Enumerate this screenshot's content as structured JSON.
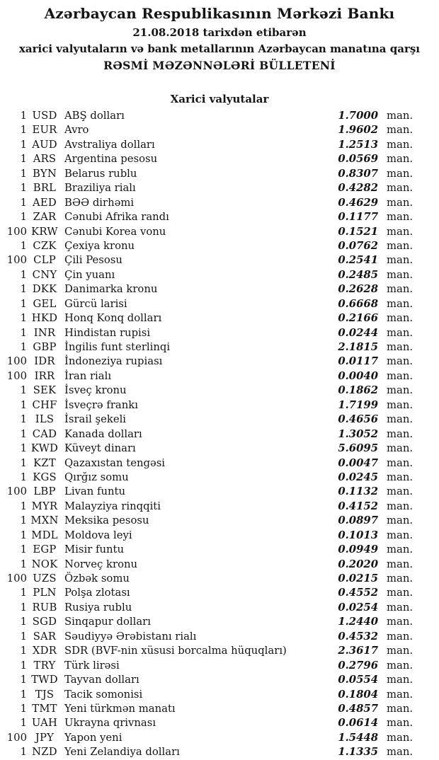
{
  "header": {
    "bank_name": "Azərbaycan Respublikasının Mərkəzi Bankı",
    "date_line": "21.08.2018 tarixdən etibarən",
    "subtitle_line": "xarici valyutaların və bank metallarının Azərbaycan manatına qarşı",
    "bulletin_title": "RƏSMİ MƏZƏNNƏLƏRİ BÜLLETENİ"
  },
  "section": {
    "title": "Xarici valyutalar"
  },
  "unit_label": "man.",
  "rates": [
    {
      "qty": "1",
      "code": "USD",
      "name": "ABŞ dolları",
      "rate": "1.7000"
    },
    {
      "qty": "1",
      "code": "EUR",
      "name": "Avro",
      "rate": "1.9602"
    },
    {
      "qty": "1",
      "code": "AUD",
      "name": "Avstraliya dolları",
      "rate": "1.2513"
    },
    {
      "qty": "1",
      "code": "ARS",
      "name": "Argentina pesosu",
      "rate": "0.0569"
    },
    {
      "qty": "1",
      "code": "BYN",
      "name": "Belarus rublu",
      "rate": "0.8307"
    },
    {
      "qty": "1",
      "code": "BRL",
      "name": "Braziliya rialı",
      "rate": "0.4282"
    },
    {
      "qty": "1",
      "code": "AED",
      "name": "BƏƏ dirhəmi",
      "rate": "0.4629"
    },
    {
      "qty": "1",
      "code": "ZAR",
      "name": "Cənubi Afrika randı",
      "rate": "0.1177"
    },
    {
      "qty": "100",
      "code": "KRW",
      "name": "Cənubi Korea vonu",
      "rate": "0.1521"
    },
    {
      "qty": "1",
      "code": "CZK",
      "name": "Çexiya kronu",
      "rate": "0.0762"
    },
    {
      "qty": "100",
      "code": "CLP",
      "name": "Çili Pesosu",
      "rate": "0.2541"
    },
    {
      "qty": "1",
      "code": "CNY",
      "name": "Çin yuanı",
      "rate": "0.2485"
    },
    {
      "qty": "1",
      "code": "DKK",
      "name": "Danimarka kronu",
      "rate": "0.2628"
    },
    {
      "qty": "1",
      "code": "GEL",
      "name": "Gürcü larisi",
      "rate": "0.6668"
    },
    {
      "qty": "1",
      "code": "HKD",
      "name": "Honq Konq dolları",
      "rate": "0.2166"
    },
    {
      "qty": "1",
      "code": "INR",
      "name": "Hindistan rupisi",
      "rate": "0.0244"
    },
    {
      "qty": "1",
      "code": "GBP",
      "name": "İngilis funt sterlinqi",
      "rate": "2.1815"
    },
    {
      "qty": "100",
      "code": "IDR",
      "name": "İndoneziya rupiası",
      "rate": "0.0117"
    },
    {
      "qty": "100",
      "code": "IRR",
      "name": "İran rialı",
      "rate": "0.0040"
    },
    {
      "qty": "1",
      "code": "SEK",
      "name": "İsveç kronu",
      "rate": "0.1862"
    },
    {
      "qty": "1",
      "code": "CHF",
      "name": "İsveçrə frankı",
      "rate": "1.7199"
    },
    {
      "qty": "1",
      "code": "ILS",
      "name": "İsrail şekeli",
      "rate": "0.4656"
    },
    {
      "qty": "1",
      "code": "CAD",
      "name": "Kanada dolları",
      "rate": "1.3052"
    },
    {
      "qty": "1",
      "code": "KWD",
      "name": "Küveyt dinarı",
      "rate": "5.6095"
    },
    {
      "qty": "1",
      "code": "KZT",
      "name": "Qazaxıstan tengəsi",
      "rate": "0.0047"
    },
    {
      "qty": "1",
      "code": "KGS",
      "name": "Qırğız somu",
      "rate": "0.0245"
    },
    {
      "qty": "100",
      "code": "LBP",
      "name": "Livan funtu",
      "rate": "0.1132"
    },
    {
      "qty": "1",
      "code": "MYR",
      "name": "Malayziya rinqqiti",
      "rate": "0.4152"
    },
    {
      "qty": "1",
      "code": "MXN",
      "name": "Meksika pesosu",
      "rate": "0.0897"
    },
    {
      "qty": "1",
      "code": "MDL",
      "name": "Moldova leyi",
      "rate": "0.1013"
    },
    {
      "qty": "1",
      "code": "EGP",
      "name": "Misir funtu",
      "rate": "0.0949"
    },
    {
      "qty": "1",
      "code": "NOK",
      "name": "Norveç kronu",
      "rate": "0.2020"
    },
    {
      "qty": "100",
      "code": "UZS",
      "name": "Özbək somu",
      "rate": "0.0215"
    },
    {
      "qty": "1",
      "code": "PLN",
      "name": "Polşa zlotası",
      "rate": "0.4552"
    },
    {
      "qty": "1",
      "code": "RUB",
      "name": "Rusiya rublu",
      "rate": "0.0254"
    },
    {
      "qty": "1",
      "code": "SGD",
      "name": "Sinqapur dolları",
      "rate": "1.2440"
    },
    {
      "qty": "1",
      "code": "SAR",
      "name": "Səudiyyə Ərəbistanı rialı",
      "rate": "0.4532"
    },
    {
      "qty": "1",
      "code": "XDR",
      "name": "SDR (BVF-nin xüsusi borcalma hüquqları)",
      "rate": "2.3617"
    },
    {
      "qty": "1",
      "code": "TRY",
      "name": "Türk lirəsi",
      "rate": "0.2796"
    },
    {
      "qty": "1",
      "code": "TWD",
      "name": "Tayvan dolları",
      "rate": "0.0554"
    },
    {
      "qty": "1",
      "code": "TJS",
      "name": "Tacik somonisi",
      "rate": "0.1804"
    },
    {
      "qty": "1",
      "code": "TMT",
      "name": "Yeni türkmən manatı",
      "rate": "0.4857"
    },
    {
      "qty": "1",
      "code": "UAH",
      "name": "Ukrayna qrivnası",
      "rate": "0.0614"
    },
    {
      "qty": "100",
      "code": "JPY",
      "name": "Yapon yeni",
      "rate": "1.5448"
    },
    {
      "qty": "1",
      "code": "NZD",
      "name": "Yeni Zelandiya dolları",
      "rate": "1.1335"
    }
  ]
}
